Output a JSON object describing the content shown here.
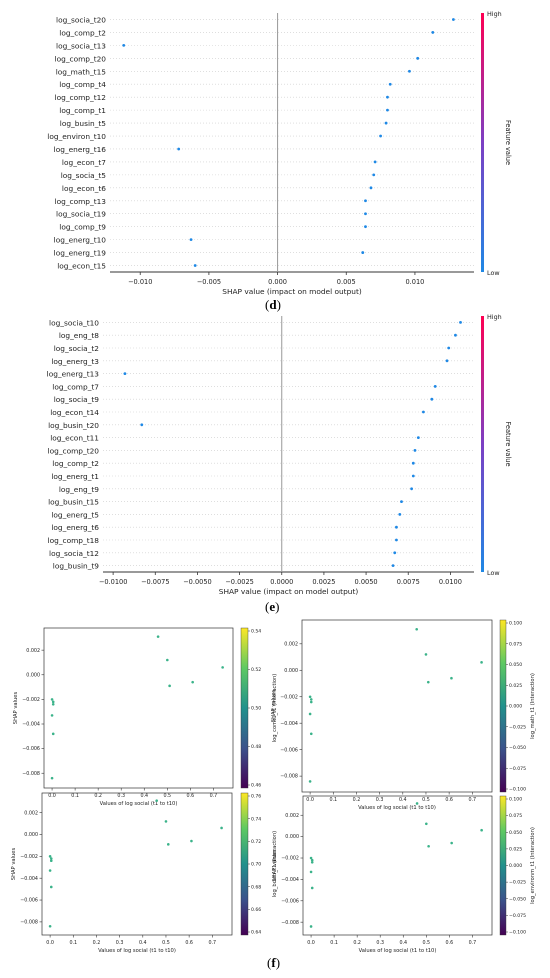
{
  "chart_data": [
    {
      "id": "d",
      "type": "scatter",
      "subtype": "shap-summary",
      "caption": "d",
      "xlabel": "SHAP value (impact on model output)",
      "xticks": [
        "−0.010",
        "−0.005",
        "0.000",
        "0.005",
        "0.010"
      ],
      "xtick_values": [
        -0.01,
        -0.005,
        0.0,
        0.005,
        0.01
      ],
      "xlim": [
        -0.0122,
        0.0143
      ],
      "colorbar": {
        "high": "High",
        "low": "Low",
        "label": "Feature value",
        "colors": [
          "#1e88e5",
          "#7c3fc4",
          "#ff0052"
        ]
      },
      "point_color": "#1e88e5",
      "features": [
        "log_socia_t20",
        "log_comp_t2",
        "log_socia_t13",
        "log_comp_t20",
        "log_math_t15",
        "log_comp_t4",
        "log_comp_t12",
        "log_comp_t1",
        "log_busin_t5",
        "log_environ_t10",
        "log_energ_t16",
        "log_econ_t7",
        "log_socia_t5",
        "log_econ_t6",
        "log_comp_t13",
        "log_socia_t19",
        "log_comp_t9",
        "log_energ_t10",
        "log_energ_t19",
        "log_econ_t15"
      ],
      "values": [
        0.0128,
        0.0113,
        -0.0112,
        0.0102,
        0.0096,
        0.0082,
        0.008,
        0.008,
        0.0079,
        0.0075,
        -0.0072,
        0.0071,
        0.007,
        0.0068,
        0.0064,
        0.0064,
        0.0064,
        -0.0063,
        0.0062,
        -0.006
      ]
    },
    {
      "id": "e",
      "type": "scatter",
      "subtype": "shap-summary",
      "caption": "e",
      "xlabel": "SHAP value (impact on model output)",
      "xticks": [
        "−0.0100",
        "−0.0075",
        "−0.0050",
        "−0.0025",
        "0.0000",
        "0.0025",
        "0.0050",
        "0.0075",
        "0.0100"
      ],
      "xtick_values": [
        -0.01,
        -0.0075,
        -0.005,
        -0.0025,
        0.0,
        0.0025,
        0.005,
        0.0075,
        0.01
      ],
      "xlim": [
        -0.0106,
        0.0114
      ],
      "colorbar": {
        "high": "High",
        "low": "Low",
        "label": "Feature value",
        "colors": [
          "#1e88e5",
          "#7c3fc4",
          "#ff0052"
        ]
      },
      "point_color": "#1e88e5",
      "features": [
        "log_socia_t10",
        "log_eng_t8",
        "log_socia_t2",
        "log_energ_t3",
        "log_energ_t13",
        "log_comp_t7",
        "log_socia_t9",
        "log_econ_t14",
        "log_busin_t20",
        "log_econ_t11",
        "log_comp_t20",
        "log_comp_t2",
        "log_energ_t1",
        "log_eng_t9",
        "log_busin_t15",
        "log_energ_t5",
        "log_energ_t6",
        "log_comp_t18",
        "log_socia_t12",
        "log_busin_t9"
      ],
      "values": [
        0.0106,
        0.0103,
        0.0099,
        0.0098,
        -0.0093,
        0.0091,
        0.0089,
        0.0084,
        -0.0083,
        0.0081,
        0.0079,
        0.0078,
        0.0078,
        0.0077,
        0.0071,
        0.007,
        0.0068,
        0.0068,
        0.0067,
        0.0066
      ]
    },
    {
      "id": "f1",
      "type": "scatter",
      "subtype": "shap-dependence",
      "xlabel": "Values of log social (t1 to t10)",
      "ylabel": "SHAP values",
      "colorbar_label": "log_comtu_t1  (Interaction)",
      "colorbar_ticks": [
        "0.54",
        "0.52",
        "0.50",
        "0.48",
        "0.46"
      ],
      "xticks": [
        "0.0",
        "0.1",
        "0.2",
        "0.3",
        "0.4",
        "0.5",
        "0.6",
        "0.7"
      ],
      "xlim": [
        -0.035,
        0.785
      ],
      "yticks": [
        "0.002",
        "0.000",
        "−0.002",
        "−0.004",
        "−0.006",
        "−0.008"
      ],
      "ylim": [
        -0.0092,
        0.0038
      ],
      "x": [
        0.0,
        0.005,
        0.0,
        0.005,
        0.0,
        0.005,
        0.46,
        0.5,
        0.51,
        0.61,
        0.74
      ],
      "y": [
        -0.002,
        -0.0024,
        -0.0033,
        -0.0048,
        -0.0084,
        -0.0022,
        0.0031,
        0.0012,
        -0.0009,
        -0.0006,
        0.0006
      ],
      "point_color": "#3bb38a"
    },
    {
      "id": "f2",
      "type": "scatter",
      "subtype": "shap-dependence",
      "xlabel": "Values of log social (t1 to t10)",
      "ylabel": "SHAP values",
      "colorbar_label": "log_math_t1  (Interaction)",
      "colorbar_ticks": [
        "0.100",
        "0.075",
        "0.050",
        "0.025",
        "0.000",
        "−0.025",
        "−0.050",
        "−0.075",
        "−0.100"
      ],
      "xticks": [
        "0.0",
        "0.1",
        "0.2",
        "0.3",
        "0.4",
        "0.5",
        "0.6",
        "0.7"
      ],
      "xlim": [
        -0.035,
        0.785
      ],
      "yticks": [
        "0.002",
        "0.000",
        "−0.002",
        "−0.004",
        "−0.006",
        "−0.008"
      ],
      "ylim": [
        -0.0092,
        0.0038
      ],
      "x": [
        0.0,
        0.005,
        0.0,
        0.005,
        0.0,
        0.005,
        0.46,
        0.5,
        0.51,
        0.61,
        0.74
      ],
      "y": [
        -0.002,
        -0.0024,
        -0.0033,
        -0.0048,
        -0.0084,
        -0.0022,
        0.0031,
        0.0012,
        -0.0009,
        -0.0006,
        0.0006
      ],
      "point_color": "#3bb38a"
    },
    {
      "id": "f3",
      "type": "scatter",
      "subtype": "shap-dependence",
      "xlabel": "Values of log social (t1 to t10)",
      "ylabel": "SHAP values",
      "colorbar_label": "log_busin_t1  (Interaction)",
      "colorbar_ticks": [
        "0.76",
        "0.74",
        "0.72",
        "0.70",
        "0.68",
        "0.66",
        "0.64"
      ],
      "xticks": [
        "0.0",
        "0.1",
        "0.2",
        "0.3",
        "0.4",
        "0.5",
        "0.6",
        "0.7"
      ],
      "xlim": [
        -0.035,
        0.785
      ],
      "yticks": [
        "0.002",
        "0.000",
        "−0.002",
        "−0.004",
        "−0.006",
        "−0.008"
      ],
      "ylim": [
        -0.0092,
        0.0038
      ],
      "x": [
        0.0,
        0.005,
        0.0,
        0.005,
        0.0,
        0.005,
        0.46,
        0.5,
        0.51,
        0.61,
        0.74
      ],
      "y": [
        -0.002,
        -0.0024,
        -0.0033,
        -0.0048,
        -0.0084,
        -0.0022,
        0.0031,
        0.0012,
        -0.0009,
        -0.0006,
        0.0006
      ],
      "point_color": "#3bb38a"
    },
    {
      "id": "f4",
      "type": "scatter",
      "subtype": "shap-dependence",
      "xlabel": "Values of log social (t1 to t10)",
      "ylabel": "SHAP values",
      "colorbar_label": "log_environm_t1  (Interaction)",
      "colorbar_ticks": [
        "0.100",
        "0.075",
        "0.050",
        "0.025",
        "0.000",
        "−0.025",
        "−0.050",
        "−0.075",
        "−0.100"
      ],
      "xticks": [
        "0.0",
        "0.1",
        "0.2",
        "0.3",
        "0.4",
        "0.5",
        "0.6",
        "0.7"
      ],
      "xlim": [
        -0.035,
        0.785
      ],
      "yticks": [
        "0.002",
        "0.000",
        "−0.002",
        "−0.004",
        "−0.006",
        "−0.008"
      ],
      "ylim": [
        -0.0092,
        0.0038
      ],
      "x": [
        0.0,
        0.005,
        0.0,
        0.005,
        0.0,
        0.005,
        0.46,
        0.5,
        0.51,
        0.61,
        0.74
      ],
      "y": [
        -0.002,
        -0.0024,
        -0.0033,
        -0.0048,
        -0.0084,
        -0.0022,
        0.0031,
        0.0012,
        -0.0009,
        -0.0006,
        0.0006
      ],
      "point_color": "#3bb38a"
    }
  ],
  "captions": {
    "f": "f"
  }
}
